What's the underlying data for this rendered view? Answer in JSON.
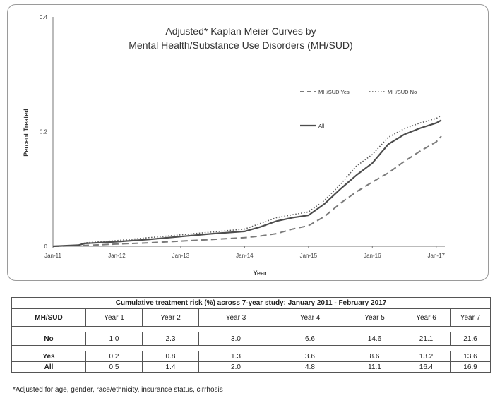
{
  "chart_data": {
    "type": "line",
    "title": "Adjusted* Kaplan Meier Curves by",
    "subtitle": "Mental Health/Substance Use Disorders (MH/SUD)",
    "xlabel": "Year",
    "ylabel": "Percent Treated",
    "ylim": [
      0,
      0.4
    ],
    "xlim": [
      "2011-01",
      "2017-02"
    ],
    "x_ticks": [
      "Jan-11",
      "Jan-12",
      "Jan-13",
      "Jan-14",
      "Jan-15",
      "Jan-16",
      "Jan-17"
    ],
    "y_ticks": [
      "0",
      "0.2",
      "0.4"
    ],
    "legend_placement": "right",
    "grid": false,
    "series": [
      {
        "name": "MH/SUD Yes",
        "style": "dashed",
        "color": "#7a7a7a",
        "x": [
          0,
          0.5,
          1,
          1.5,
          2,
          2.5,
          3,
          3.25,
          3.5,
          3.75,
          4,
          4.25,
          4.5,
          4.75,
          5,
          5.25,
          5.5,
          5.75,
          6,
          6.08
        ],
        "y": [
          0,
          0.0015,
          0.004,
          0.006,
          0.009,
          0.012,
          0.015,
          0.018,
          0.022,
          0.03,
          0.036,
          0.052,
          0.075,
          0.095,
          0.112,
          0.128,
          0.148,
          0.166,
          0.182,
          0.192
        ]
      },
      {
        "name": "MH/SUD No",
        "style": "dotted",
        "color": "#5a5a5a",
        "x": [
          0,
          0.4,
          0.5,
          1,
          1.5,
          2,
          2.5,
          3,
          3.25,
          3.5,
          3.75,
          4,
          4.25,
          4.5,
          4.75,
          5,
          5.25,
          5.5,
          5.75,
          6,
          6.08
        ],
        "y": [
          0,
          0.002,
          0.006,
          0.01,
          0.015,
          0.02,
          0.025,
          0.03,
          0.04,
          0.05,
          0.055,
          0.06,
          0.08,
          0.108,
          0.14,
          0.16,
          0.19,
          0.205,
          0.215,
          0.223,
          0.228
        ]
      },
      {
        "name": "All",
        "style": "solid",
        "color": "#4d4d4d",
        "x": [
          0,
          0.4,
          0.5,
          1,
          1.5,
          2,
          2.5,
          3,
          3.25,
          3.5,
          3.75,
          4,
          4.25,
          4.5,
          4.75,
          5,
          5.25,
          5.5,
          5.75,
          6,
          6.08
        ],
        "y": [
          0,
          0.002,
          0.005,
          0.008,
          0.012,
          0.017,
          0.022,
          0.026,
          0.034,
          0.044,
          0.05,
          0.054,
          0.074,
          0.1,
          0.124,
          0.145,
          0.178,
          0.195,
          0.206,
          0.215,
          0.22
        ]
      }
    ],
    "legend": [
      "MH/SUD Yes",
      "MH/SUD No",
      "All"
    ]
  },
  "table": {
    "caption": "Cumulative treatment risk (%) across 7-year study: January 2011 - February 2017",
    "headers": [
      "MH/SUD",
      "Year 1",
      "Year 2",
      "Year 3",
      "Year 4",
      "Year 5",
      "Year 6",
      "Year 7"
    ],
    "rows": [
      [
        "No",
        "1.0",
        "2.3",
        "3.0",
        "6.6",
        "14.6",
        "21.1",
        "21.6"
      ],
      [
        "Yes",
        "0.2",
        "0.8",
        "1.3",
        "3.6",
        "8.6",
        "13.2",
        "13.6"
      ],
      [
        "All",
        "0.5",
        "1.4",
        "2.0",
        "4.8",
        "11.1",
        "16.4",
        "16.9"
      ]
    ]
  },
  "footnote": "*Adjusted for age, gender, race/ethnicity, insurance status, cirrhosis"
}
